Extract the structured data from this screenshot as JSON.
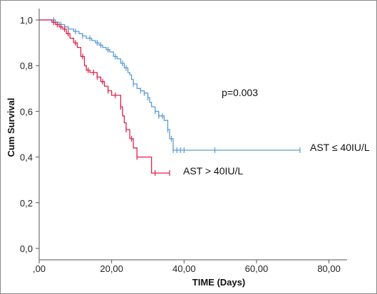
{
  "chart_data": {
    "type": "line",
    "xlabel": "TIME (Days)",
    "ylabel": "Cum Survival",
    "xlim": [
      0,
      85
    ],
    "ylim": [
      -0.05,
      1.05
    ],
    "xticks": [
      0,
      20,
      40,
      60,
      80
    ],
    "xtick_labels": [
      ",00",
      "20,00",
      "40,00",
      "60,00",
      "80,00"
    ],
    "yticks": [
      0,
      0.2,
      0.4,
      0.6,
      0.8,
      1.0
    ],
    "ytick_labels": [
      "0,0",
      "0,2",
      "0,4",
      "0,6",
      "0,8",
      "1,0"
    ],
    "grid": false,
    "annotation": "p=0.003",
    "series": [
      {
        "name": "AST ≤ 40IU/L",
        "color": "#5b9bd5",
        "steps": [
          [
            0,
            1.0
          ],
          [
            4,
            1.0
          ],
          [
            4.5,
            0.99
          ],
          [
            5.5,
            0.98
          ],
          [
            7,
            0.97
          ],
          [
            8,
            0.96
          ],
          [
            9.5,
            0.95
          ],
          [
            11,
            0.94
          ],
          [
            12,
            0.93
          ],
          [
            13,
            0.92
          ],
          [
            14.5,
            0.91
          ],
          [
            15.5,
            0.9
          ],
          [
            16.5,
            0.89
          ],
          [
            17.5,
            0.88
          ],
          [
            18.5,
            0.87
          ],
          [
            19.5,
            0.86
          ],
          [
            20.5,
            0.84
          ],
          [
            21.5,
            0.83
          ],
          [
            22.5,
            0.81
          ],
          [
            23.5,
            0.79
          ],
          [
            24.5,
            0.77
          ],
          [
            25,
            0.76
          ],
          [
            25.5,
            0.74
          ],
          [
            26,
            0.72
          ],
          [
            27,
            0.7
          ],
          [
            28,
            0.69
          ],
          [
            29,
            0.68
          ],
          [
            30,
            0.66
          ],
          [
            30.5,
            0.64
          ],
          [
            31,
            0.62
          ],
          [
            32,
            0.6
          ],
          [
            33,
            0.58
          ],
          [
            34.5,
            0.56
          ],
          [
            35.5,
            0.52
          ],
          [
            36,
            0.48
          ],
          [
            37,
            0.43
          ],
          [
            72,
            0.43
          ]
        ],
        "censor_x": [
          4,
          6,
          8,
          10,
          12,
          14,
          16,
          17,
          19,
          21,
          23,
          24,
          26,
          28,
          29,
          30,
          32,
          33,
          34,
          35.5,
          36.5,
          37,
          38,
          39,
          40,
          48.5,
          72
        ]
      },
      {
        "name": "AST > 40IU/L",
        "color": "#e0214a",
        "steps": [
          [
            0,
            1.0
          ],
          [
            3,
            1.0
          ],
          [
            3.5,
            0.99
          ],
          [
            4.5,
            0.98
          ],
          [
            5.5,
            0.97
          ],
          [
            6.5,
            0.96
          ],
          [
            7.5,
            0.94
          ],
          [
            8.5,
            0.92
          ],
          [
            9.5,
            0.9
          ],
          [
            10.5,
            0.88
          ],
          [
            11.5,
            0.84
          ],
          [
            12.5,
            0.8
          ],
          [
            13,
            0.78
          ],
          [
            14,
            0.77
          ],
          [
            16,
            0.75
          ],
          [
            17,
            0.73
          ],
          [
            18,
            0.71
          ],
          [
            19,
            0.69
          ],
          [
            20,
            0.67
          ],
          [
            22.5,
            0.62
          ],
          [
            23,
            0.58
          ],
          [
            23.5,
            0.55
          ],
          [
            24,
            0.52
          ],
          [
            25,
            0.48
          ],
          [
            26,
            0.44
          ],
          [
            27,
            0.4
          ],
          [
            31,
            0.33
          ],
          [
            36,
            0.33
          ]
        ],
        "censor_x": [
          4,
          5,
          6,
          7,
          8,
          10,
          12,
          13.5,
          15,
          16,
          17.5,
          19,
          21,
          22.5,
          24,
          25.5,
          27,
          32,
          36
        ]
      }
    ]
  }
}
